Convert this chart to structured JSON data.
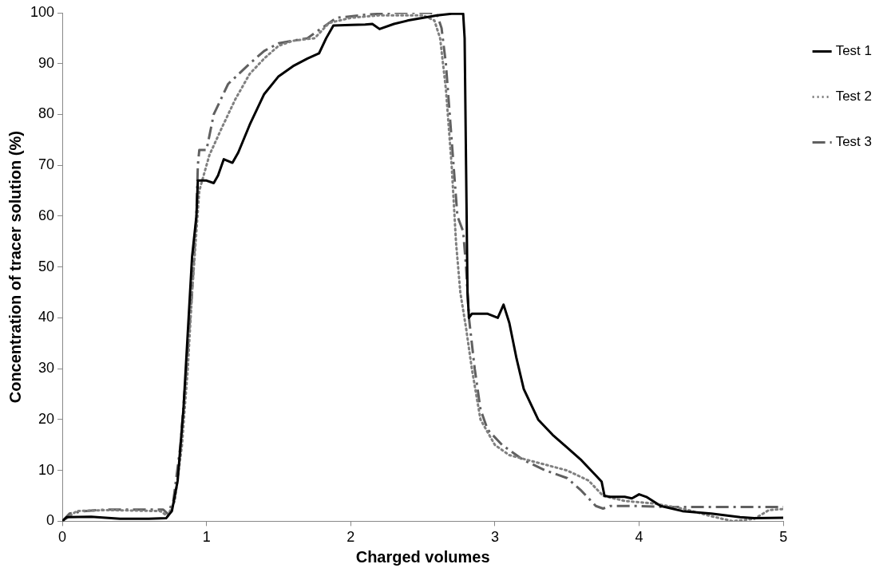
{
  "chart_data": {
    "type": "line",
    "xlabel": "Charged volumes",
    "ylabel": "Concentration of tracer solution (%)",
    "xlim": [
      0,
      5
    ],
    "xticks": [
      0,
      1,
      2,
      3,
      4,
      5
    ],
    "ylim": [
      0,
      100
    ],
    "yticks": [
      0,
      10,
      20,
      30,
      40,
      50,
      60,
      70,
      80,
      90,
      100
    ],
    "grid": false,
    "legend": "top right",
    "marker": "none",
    "series": [
      {
        "name": "Test 1",
        "color": "#000000",
        "line_style": "solid",
        "x": [
          0,
          0.03,
          0.2,
          0.4,
          0.6,
          0.72,
          0.76,
          0.8,
          0.84,
          0.87,
          0.9,
          0.93,
          0.94,
          1.0,
          1.05,
          1.08,
          1.12,
          1.18,
          1.22,
          1.3,
          1.4,
          1.5,
          1.6,
          1.7,
          1.78,
          1.83,
          1.88,
          2.0,
          2.1,
          2.15,
          2.2,
          2.3,
          2.4,
          2.6,
          2.7,
          2.78,
          2.79,
          2.8,
          2.81,
          2.82,
          2.84,
          2.95,
          3.02,
          3.06,
          3.1,
          3.15,
          3.2,
          3.3,
          3.4,
          3.5,
          3.6,
          3.7,
          3.74,
          3.76,
          3.8,
          3.9,
          3.95,
          4.0,
          4.05,
          4.15,
          4.3,
          4.5,
          4.7,
          4.8,
          5
        ],
        "values": [
          0,
          0.8,
          0.9,
          0.5,
          0.5,
          0.6,
          2,
          8,
          22,
          37,
          52,
          60,
          67,
          67,
          66.5,
          68,
          71.2,
          70.5,
          72.5,
          78,
          84,
          87.5,
          89.5,
          91,
          92,
          95,
          97.5,
          97.6,
          97.7,
          97.8,
          96.8,
          97.8,
          98.5,
          99.5,
          99.8,
          99.8,
          95,
          70,
          45,
          40,
          40.8,
          40.8,
          40,
          42.6,
          39,
          32,
          26,
          20,
          17,
          14.5,
          12,
          9,
          7.8,
          5,
          4.8,
          4.8,
          4.5,
          5.3,
          4.8,
          3,
          2,
          1.5,
          0.8,
          0.6,
          0.7
        ]
      },
      {
        "name": "Test 2",
        "color": "#808080",
        "line_style": "dotted",
        "x": [
          0,
          0.05,
          0.1,
          0.3,
          0.5,
          0.68,
          0.73,
          0.78,
          0.83,
          0.87,
          0.9,
          0.93,
          0.95,
          0.98,
          1.02,
          1.1,
          1.2,
          1.3,
          1.4,
          1.5,
          1.6,
          1.75,
          1.85,
          2.0,
          2.2,
          2.5,
          2.58,
          2.62,
          2.66,
          2.7,
          2.73,
          2.76,
          2.8,
          2.84,
          2.9,
          3.0,
          3.1,
          3.3,
          3.5,
          3.65,
          3.75,
          3.9,
          4.1,
          4.3,
          4.5,
          4.65,
          4.8,
          4.9,
          5
        ],
        "values": [
          0,
          1,
          2,
          2.2,
          2.1,
          2,
          1,
          4,
          15,
          30,
          45,
          57,
          65,
          68,
          72,
          77,
          83,
          88,
          91,
          93.5,
          94.5,
          95,
          98,
          99,
          99.5,
          99.5,
          98.5,
          95,
          85,
          70,
          55,
          45,
          38,
          30,
          20,
          15,
          13,
          11.5,
          10,
          8,
          5,
          4,
          3.5,
          2.5,
          1,
          0,
          0.5,
          2.2,
          2.4
        ]
      },
      {
        "name": "Test 3",
        "color": "#606060",
        "line_style": "dashdot",
        "x": [
          0,
          0.05,
          0.15,
          0.3,
          0.5,
          0.7,
          0.73,
          0.77,
          0.82,
          0.86,
          0.9,
          0.93,
          0.94,
          0.95,
          1.0,
          1.05,
          1.15,
          1.3,
          1.4,
          1.5,
          1.7,
          1.8,
          1.9,
          2.1,
          2.3,
          2.55,
          2.6,
          2.63,
          2.66,
          2.7,
          2.74,
          2.78,
          2.8,
          2.82,
          2.86,
          2.9,
          2.95,
          3.05,
          3.2,
          3.35,
          3.5,
          3.6,
          3.7,
          3.75,
          3.8,
          4.0,
          4.2,
          4.5,
          4.8,
          5
        ],
        "values": [
          0,
          1.5,
          2,
          2.3,
          2.3,
          2.3,
          1.5,
          4,
          15,
          30,
          45,
          60,
          70,
          73,
          73,
          80,
          86,
          90,
          92.5,
          94,
          95,
          97,
          99,
          99.6,
          100,
          100,
          99.5,
          97,
          90,
          75,
          60,
          57,
          50,
          40,
          30,
          22,
          18,
          15,
          12,
          10,
          8.5,
          6,
          3,
          2.5,
          3,
          3,
          2.8,
          2.8,
          2.8,
          2.8
        ]
      }
    ]
  }
}
